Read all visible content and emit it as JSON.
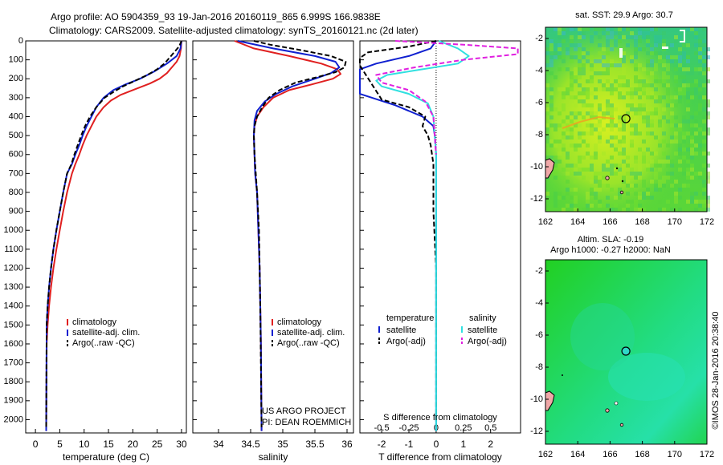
{
  "header": {
    "line1": "Argo profile: AO 5904359_93 19-Jan-2016 20160119_865 6.999S 166.9838E",
    "line2": "Climatology: CARS2009. Satellite-adjusted climatology: synTS_20160121.nc (2d later)"
  },
  "side_stamp": "©IMOS 28-Jan-2016 20:38:40",
  "colors": {
    "climatology": "#e02020",
    "satellite": "#1020d0",
    "argo": "#000000",
    "sal_satellite": "#30e0e0",
    "sal_argo": "#e020e0"
  },
  "chart_data": [
    {
      "type": "line",
      "xlabel": "temperature (deg C)",
      "xlim": [
        -2,
        31
      ],
      "xticks": [
        0,
        5,
        10,
        15,
        20,
        25,
        30
      ],
      "ylim": [
        2070,
        0
      ],
      "yticks": [
        0,
        100,
        200,
        300,
        400,
        500,
        600,
        700,
        800,
        900,
        1000,
        1100,
        1200,
        1300,
        1400,
        1500,
        1600,
        1700,
        1800,
        1900,
        2000
      ],
      "legend": [
        "climatology",
        "satellite-adj. clim.",
        "Argo(..raw -QC)"
      ],
      "series": [
        {
          "name": "climatology",
          "style": "solid",
          "color": "#e02020",
          "x": [
            30.0,
            29.9,
            29.6,
            29.0,
            28.0,
            27.0,
            25.5,
            23.5,
            20.5,
            17.5,
            15.5,
            14.0,
            12.5,
            11.5,
            10.5,
            9.7,
            9.0,
            8.2,
            7.5,
            6.5,
            5.7,
            5.0,
            4.3,
            3.7,
            3.2,
            2.8,
            2.5,
            2.3,
            2.2
          ],
          "y": [
            0,
            40,
            80,
            110,
            140,
            170,
            200,
            225,
            255,
            285,
            315,
            350,
            400,
            450,
            500,
            550,
            600,
            650,
            700,
            800,
            900,
            1000,
            1100,
            1200,
            1300,
            1400,
            1500,
            1600,
            2060
          ]
        },
        {
          "name": "satellite-adj. clim.",
          "style": "solid",
          "color": "#1020d0",
          "x": [
            30.0,
            29.8,
            29.0,
            27.0,
            24.5,
            21.5,
            18.5,
            16.0,
            14.0,
            12.5,
            11.5,
            10.5,
            9.7,
            9.0,
            8.2,
            7.5,
            6.5,
            5.7,
            5.0,
            4.3,
            3.7,
            3.2,
            2.8,
            2.5,
            2.3,
            2.2
          ],
          "y": [
            0,
            40,
            80,
            120,
            160,
            200,
            230,
            260,
            300,
            350,
            400,
            450,
            500,
            550,
            600,
            650,
            700,
            800,
            900,
            1000,
            1100,
            1200,
            1300,
            1400,
            1500,
            2060
          ]
        },
        {
          "name": "Argo(..raw -QC)",
          "style": "dashed",
          "color": "#000000",
          "x": [
            30.0,
            29.5,
            28.5,
            27.5,
            26.5,
            25.0,
            23.0,
            20.5,
            18.0,
            16.0,
            14.2,
            12.5,
            11.2,
            10.2,
            9.4,
            8.7,
            8.0,
            7.4,
            6.5,
            5.7,
            5.0,
            4.3,
            3.7,
            3.2,
            2.8,
            2.5,
            2.3,
            2.2
          ],
          "y": [
            0,
            30,
            60,
            90,
            120,
            150,
            180,
            210,
            240,
            270,
            300,
            350,
            400,
            450,
            500,
            550,
            600,
            650,
            700,
            800,
            900,
            1000,
            1100,
            1200,
            1300,
            1400,
            1500,
            2040
          ]
        }
      ]
    },
    {
      "type": "line",
      "xlabel": "salinity",
      "xlim": [
        33.6,
        36.1
      ],
      "xticks": [
        34,
        34.5,
        35,
        35.5,
        36
      ],
      "ylim": [
        2070,
        0
      ],
      "legend": [
        "climatology",
        "satellite-adj. clim.",
        "Argo(..raw -QC)"
      ],
      "footnote": [
        "US ARGO PROJECT",
        "PI: DEAN ROEMMICH"
      ],
      "series": [
        {
          "name": "climatology",
          "style": "solid",
          "color": "#e02020",
          "x": [
            34.25,
            34.55,
            35.1,
            35.6,
            35.85,
            35.9,
            35.78,
            35.45,
            35.1,
            34.85,
            34.7,
            34.6,
            34.56,
            34.55,
            34.56,
            34.57,
            34.6,
            34.62,
            34.64,
            34.66,
            34.67
          ],
          "y": [
            0,
            40,
            80,
            120,
            150,
            175,
            200,
            230,
            260,
            300,
            350,
            400,
            450,
            500,
            600,
            700,
            800,
            1000,
            1200,
            1600,
            2060
          ]
        },
        {
          "name": "satellite-adj. clim.",
          "style": "solid",
          "color": "#1020d0",
          "x": [
            34.3,
            34.85,
            35.5,
            35.82,
            35.88,
            35.75,
            35.5,
            35.15,
            34.9,
            34.72,
            34.6,
            34.56,
            34.55,
            34.56,
            34.57,
            34.6,
            34.62,
            34.64,
            34.66,
            34.67
          ],
          "y": [
            0,
            40,
            80,
            110,
            140,
            170,
            200,
            240,
            280,
            320,
            370,
            420,
            500,
            600,
            700,
            800,
            1000,
            1200,
            1600,
            2060
          ]
        },
        {
          "name": "Argo(..raw -QC)",
          "style": "dashed",
          "color": "#000000",
          "x": [
            34.55,
            34.8,
            35.3,
            35.75,
            35.98,
            35.96,
            35.82,
            35.55,
            35.2,
            34.95,
            34.78,
            34.68,
            34.6,
            34.56,
            34.55,
            34.56,
            34.58,
            34.6,
            34.63,
            34.65,
            34.67
          ],
          "y": [
            0,
            20,
            50,
            80,
            110,
            140,
            165,
            190,
            220,
            260,
            300,
            350,
            400,
            450,
            500,
            600,
            700,
            800,
            1000,
            1400,
            2040
          ]
        }
      ]
    },
    {
      "type": "line",
      "xlabel": "T difference from climatology",
      "xlabel_top": "S difference from climatology",
      "xlim": [
        -2.8,
        3.1
      ],
      "xticks": [
        -2,
        -1,
        0,
        1,
        2
      ],
      "top_ticks": [
        {
          "label": "-0.5",
          "x": -2
        },
        {
          "label": "-0.25",
          "x": -1
        },
        {
          "label": "0",
          "x": 0
        },
        {
          "label": "0.25",
          "x": 1
        },
        {
          "label": "0.5",
          "x": 2
        }
      ],
      "ylim": [
        2070,
        0
      ],
      "legend_titles": [
        "temperature",
        "salinity"
      ],
      "legend": [
        "satellite",
        "Argo(-adj)",
        "satellite",
        "Argo(-adj)"
      ],
      "series": [
        {
          "name": "satellite",
          "style": "solid",
          "color": "#1020d0",
          "x": [
            0.0,
            -0.2,
            -1.0,
            -2.2,
            -2.8,
            -2.8,
            -1.5,
            -0.5,
            -0.1,
            -0.05,
            0.0,
            0.0,
            0.0
          ],
          "y": [
            0,
            40,
            80,
            120,
            150,
            280,
            340,
            400,
            450,
            500,
            600,
            1000,
            2060
          ]
        },
        {
          "name": "Argo(-adj)",
          "style": "dashed",
          "color": "#000000",
          "x": [
            0.0,
            -1.0,
            -2.5,
            -2.8,
            -2.8,
            -2.0,
            -1.0,
            -0.4,
            -0.5,
            -0.3,
            -0.2,
            -0.1,
            -0.1,
            0.0,
            0.0
          ],
          "y": [
            0,
            30,
            60,
            90,
            130,
            310,
            350,
            400,
            450,
            500,
            550,
            650,
            900,
            1200,
            2040
          ]
        },
        {
          "name": "satellite",
          "style": "solid",
          "color": "#30e0e0",
          "x": [
            0.1,
            0.8,
            1.2,
            0.8,
            -0.5,
            -1.8,
            -2.2,
            -2.0,
            -1.0,
            -0.3,
            -0.1,
            0.0,
            0.0
          ],
          "y": [
            0,
            40,
            80,
            120,
            150,
            180,
            210,
            240,
            280,
            330,
            400,
            600,
            2060
          ]
        },
        {
          "name": "Argo(-adj)",
          "style": "dashed",
          "color": "#e020e0",
          "x": [
            -1.5,
            1.0,
            3.0,
            3.0,
            1.0,
            -0.8,
            -2.2,
            -2.0,
            -1.0,
            -0.4,
            -0.1,
            0.0
          ],
          "y": [
            0,
            20,
            40,
            70,
            100,
            140,
            180,
            220,
            260,
            320,
            400,
            600
          ]
        }
      ]
    },
    {
      "type": "heatmap",
      "title": "sat. SST: 29.9  Argo: 30.7",
      "xlim": [
        162,
        172
      ],
      "ylim": [
        -12.8,
        -1.3
      ],
      "xticks": [
        162,
        164,
        166,
        168,
        170,
        172
      ],
      "yticks": [
        -2,
        -4,
        -6,
        -8,
        -10,
        -12
      ],
      "marker": {
        "x": 166.98,
        "y": -7.0
      }
    },
    {
      "type": "heatmap",
      "title_lines": [
        "Altim. SLA: -0.19",
        "Argo h1000: -0.27 h2000: NaN"
      ],
      "xlim": [
        162,
        172
      ],
      "ylim": [
        -12.8,
        -1.3
      ],
      "xticks": [
        162,
        164,
        166,
        168,
        170,
        172
      ],
      "yticks": [
        -2,
        -4,
        -6,
        -8,
        -10,
        -12
      ],
      "marker": {
        "x": 166.98,
        "y": -7.0
      }
    }
  ]
}
